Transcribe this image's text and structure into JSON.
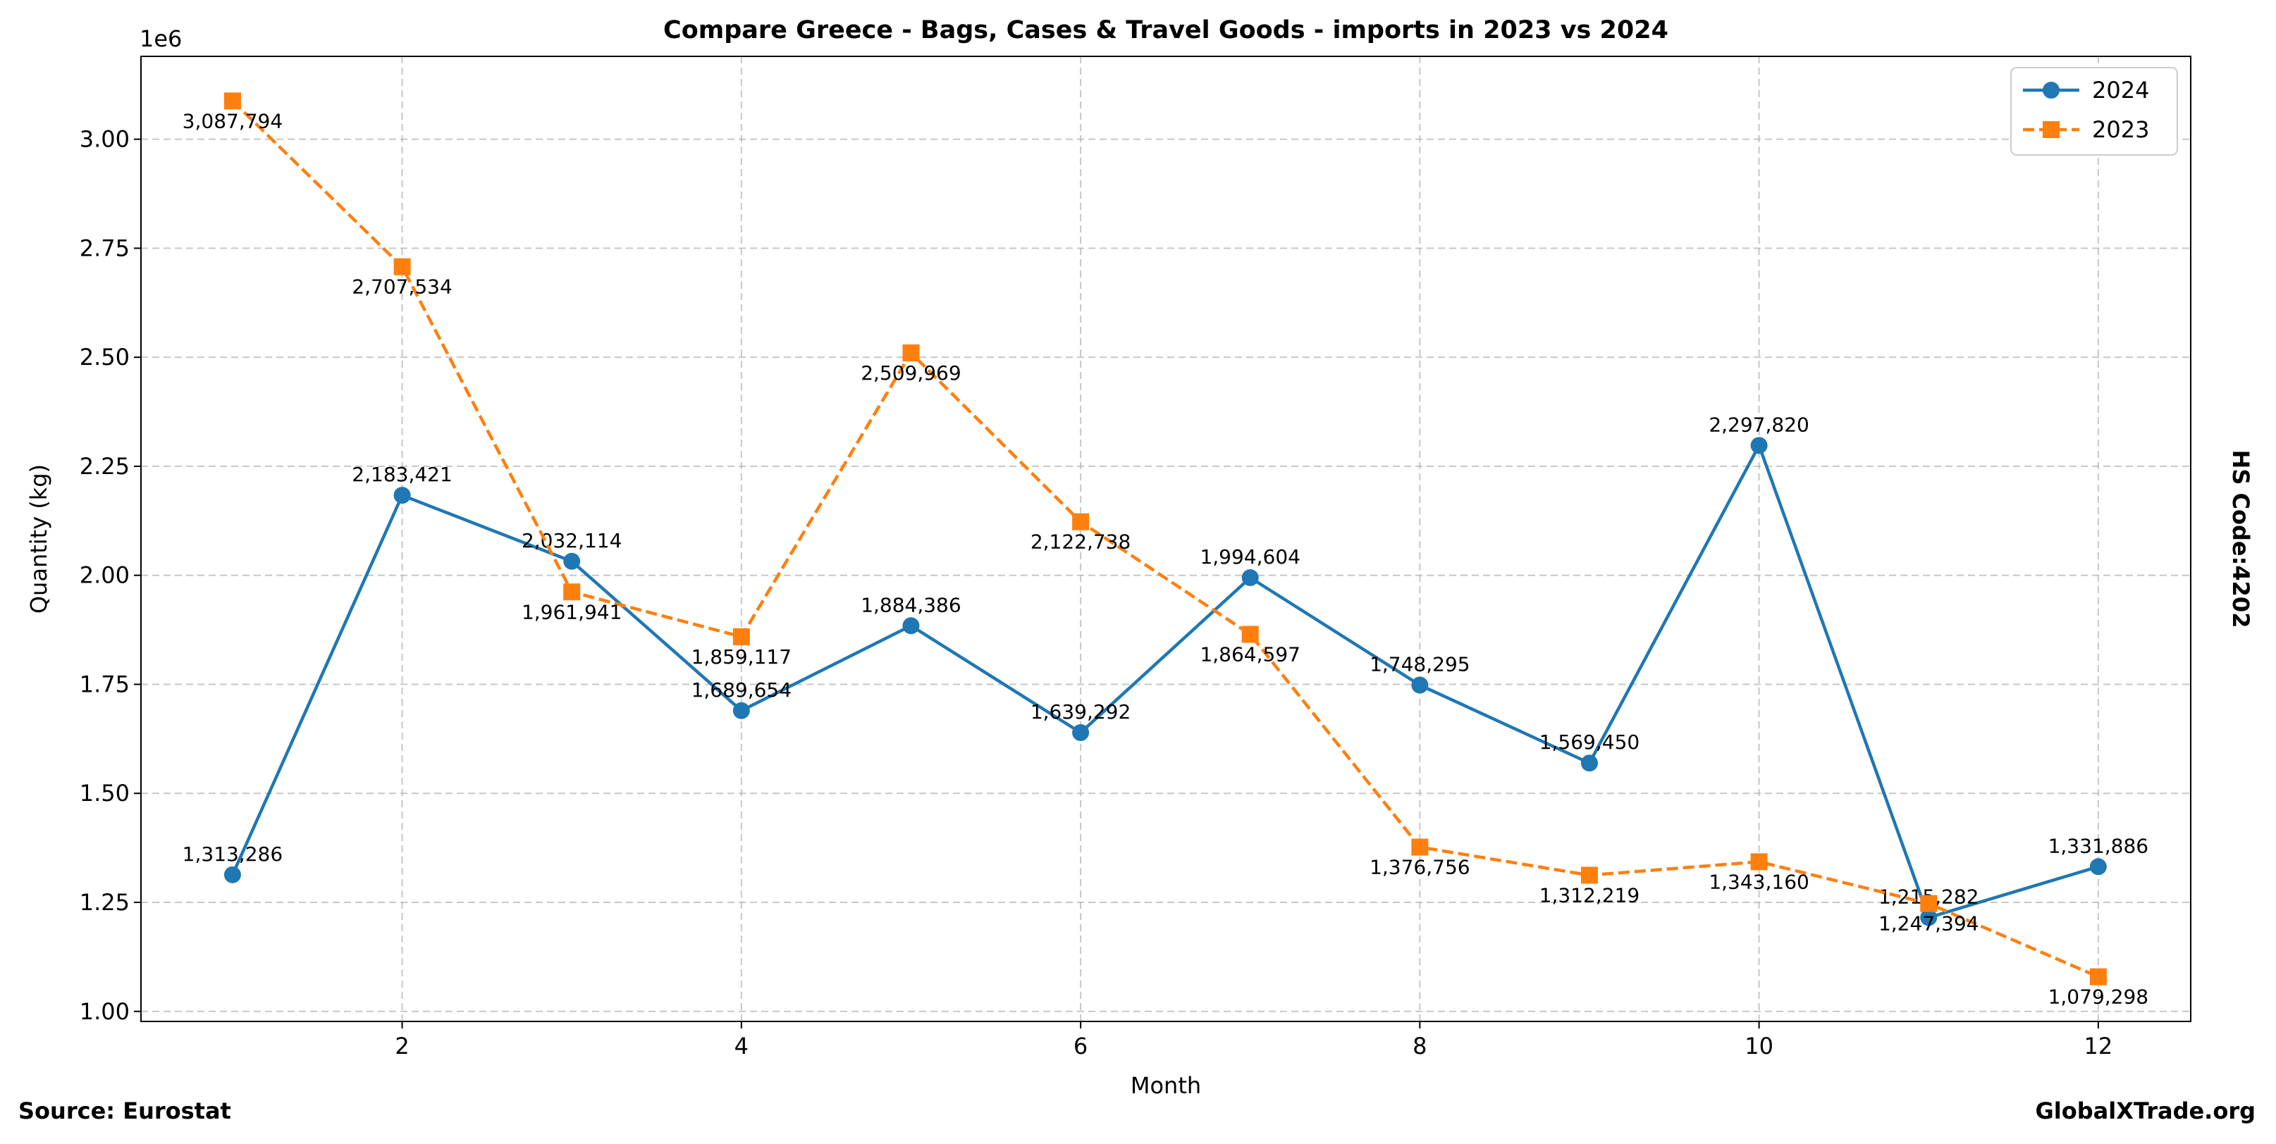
{
  "chart_data": {
    "type": "line",
    "title": "Compare Greece - Bags, Cases & Travel Goods - imports in 2023 vs 2024",
    "xlabel": "Month",
    "ylabel": "Quantity (kg)",
    "y_offset_label": "1e6",
    "xlim": [
      0.46,
      12.545
    ],
    "ylim": [
      0.977,
      3.19
    ],
    "y_scale": 1000000,
    "x_ticks": [
      2,
      4,
      6,
      8,
      10,
      12
    ],
    "x_tick_labels": [
      "2",
      "4",
      "6",
      "8",
      "10",
      "12"
    ],
    "y_ticks": [
      1.0,
      1.25,
      1.5,
      1.75,
      2.0,
      2.25,
      2.5,
      2.75,
      3.0
    ],
    "y_tick_labels": [
      "1.00",
      "1.25",
      "1.50",
      "1.75",
      "2.00",
      "2.25",
      "2.50",
      "2.75",
      "3.00"
    ],
    "grid": true,
    "legend_position": "top-right",
    "x": [
      1,
      2,
      3,
      4,
      5,
      6,
      7,
      8,
      9,
      10,
      11,
      12
    ],
    "series": [
      {
        "name": "2024",
        "color": "#1f77b4",
        "marker": "circle",
        "linestyle": "solid",
        "label_pos": "above",
        "values": [
          1313286,
          2183421,
          2032114,
          1689654,
          1884386,
          1639292,
          1994604,
          1748295,
          1569450,
          2297820,
          1215282,
          1331886
        ],
        "labels": [
          "1,313,286",
          "2,183,421",
          "2,032,114",
          "1,689,654",
          "1,884,386",
          "1,639,292",
          "1,994,604",
          "1,748,295",
          "1,569,450",
          "2,297,820",
          "1,215,282",
          "1,331,886"
        ]
      },
      {
        "name": "2023",
        "color": "#ff7f0e",
        "marker": "square",
        "linestyle": "dashed",
        "label_pos": "below",
        "values": [
          3087794,
          2707534,
          1961941,
          1859117,
          2509969,
          2122738,
          1864597,
          1376756,
          1312219,
          1343160,
          1247394,
          1079298
        ],
        "labels": [
          "3,087,794",
          "2,707,534",
          "1,961,941",
          "1,859,117",
          "2,509,969",
          "2,122,738",
          "1,864,597",
          "1,376,756",
          "1,312,219",
          "1,343,160",
          "1,247,394",
          "1,079,298"
        ]
      }
    ],
    "side_label": "HS Code:4202",
    "source": "Source: Eurostat",
    "watermark": "GlobalXTrade.org"
  }
}
